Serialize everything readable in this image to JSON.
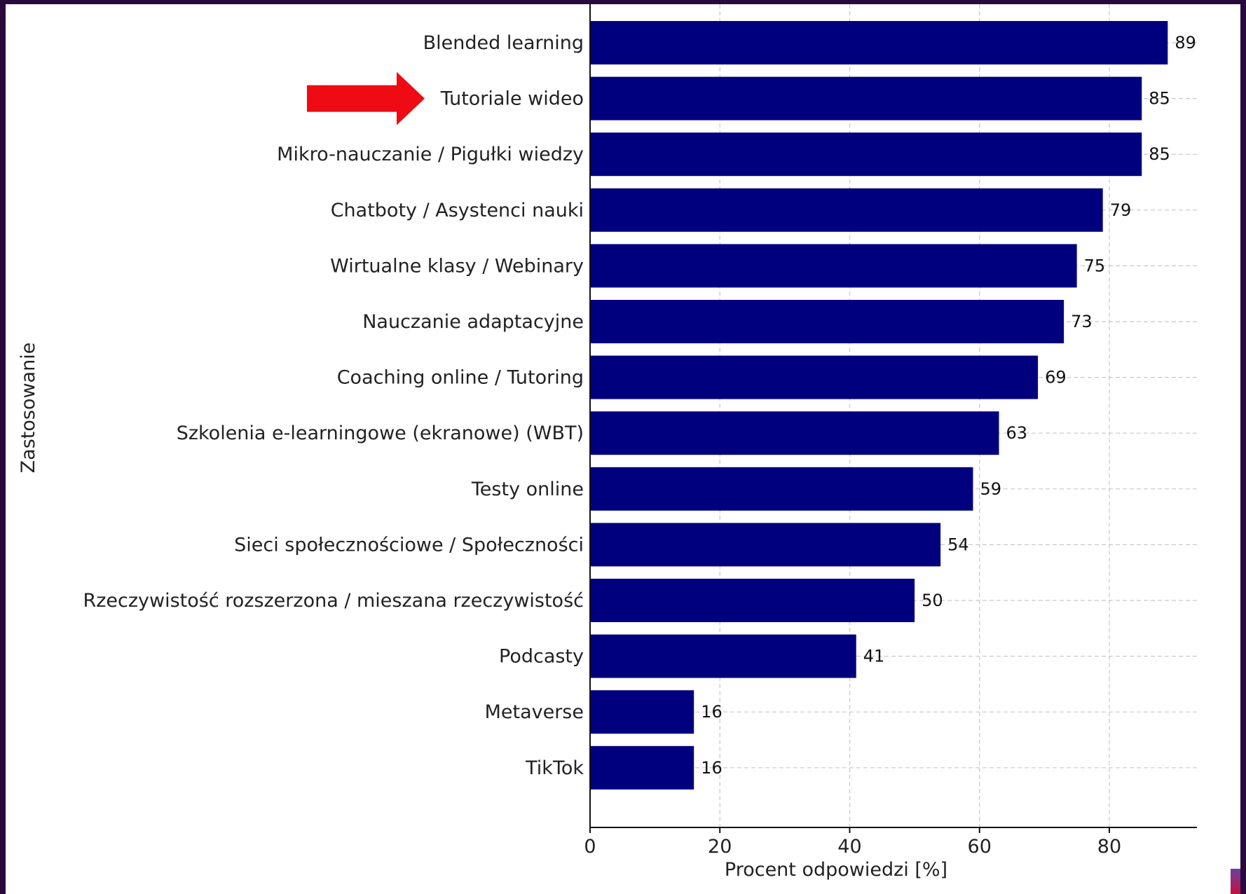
{
  "chart_data": {
    "type": "bar",
    "orientation": "horizontal",
    "categories": [
      "Blended learning",
      "Tutoriale wideo",
      "Mikro-nauczanie / Pigułki wiedzy",
      "Chatboty / Asystenci nauki",
      "Wirtualne klasy / Webinary",
      "Nauczanie adaptacyjne",
      "Coaching online / Tutoring",
      "Szkolenia e-learningowe (ekranowe) (WBT)",
      "Testy online",
      "Sieci społecznościowe / Społeczności",
      "Rzeczywistość rozszerzona / mieszana rzeczywistość",
      "Podcasty",
      "Metaverse",
      "TikTok"
    ],
    "values": [
      89,
      85,
      85,
      79,
      75,
      73,
      69,
      63,
      59,
      54,
      50,
      41,
      16,
      16
    ],
    "data_labels": [
      "89",
      "85",
      "85",
      "79",
      "75",
      "73",
      "69",
      "63",
      "59",
      "54",
      "50",
      "41",
      "16",
      "16"
    ],
    "xlabel": "Procent odpowiedzi [%]",
    "ylabel": "Zastosowanie",
    "xlim": [
      0,
      93.5
    ],
    "xticks": [
      0,
      20,
      40,
      60,
      80
    ],
    "xtick_labels": [
      "0",
      "20",
      "40",
      "60",
      "80"
    ],
    "grid": true,
    "bar_color": "#00007f",
    "highlight": {
      "category": "Tutoriale wideo",
      "marker": "red-arrow",
      "color": "#ee0b13"
    }
  }
}
